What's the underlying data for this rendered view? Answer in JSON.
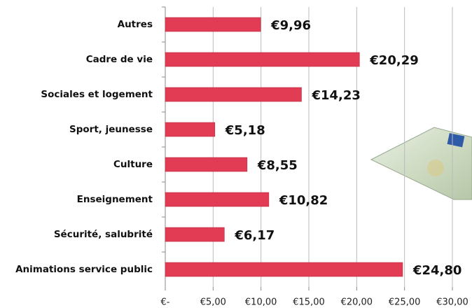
{
  "chart_data": {
    "type": "bar",
    "orientation": "horizontal",
    "categories": [
      "Autres",
      "Cadre de vie",
      "Sociales et logement",
      "Sport, jeunesse",
      "Culture",
      "Enseignement",
      "Sécurité, salubrité",
      "Animations service public"
    ],
    "values": [
      9.96,
      20.29,
      14.23,
      5.18,
      8.55,
      10.82,
      6.17,
      24.8
    ],
    "value_labels": [
      "€9,96",
      "€20,29",
      "€14,23",
      "€5,18",
      "€8,55",
      "€10,82",
      "€6,17",
      "€24,80"
    ],
    "color": "#e23c55",
    "xlim": [
      0,
      30
    ],
    "xticks": [
      {
        "value": 0,
        "label": "€-"
      },
      {
        "value": 5,
        "label": "€5,00"
      },
      {
        "value": 10,
        "label": "€10,00"
      },
      {
        "value": 15,
        "label": "€15,00"
      },
      {
        "value": 20,
        "label": "€20,00"
      },
      {
        "value": 25,
        "label": "€25,00"
      },
      {
        "value": 30,
        "label": "€30,00"
      }
    ],
    "grid": true
  }
}
